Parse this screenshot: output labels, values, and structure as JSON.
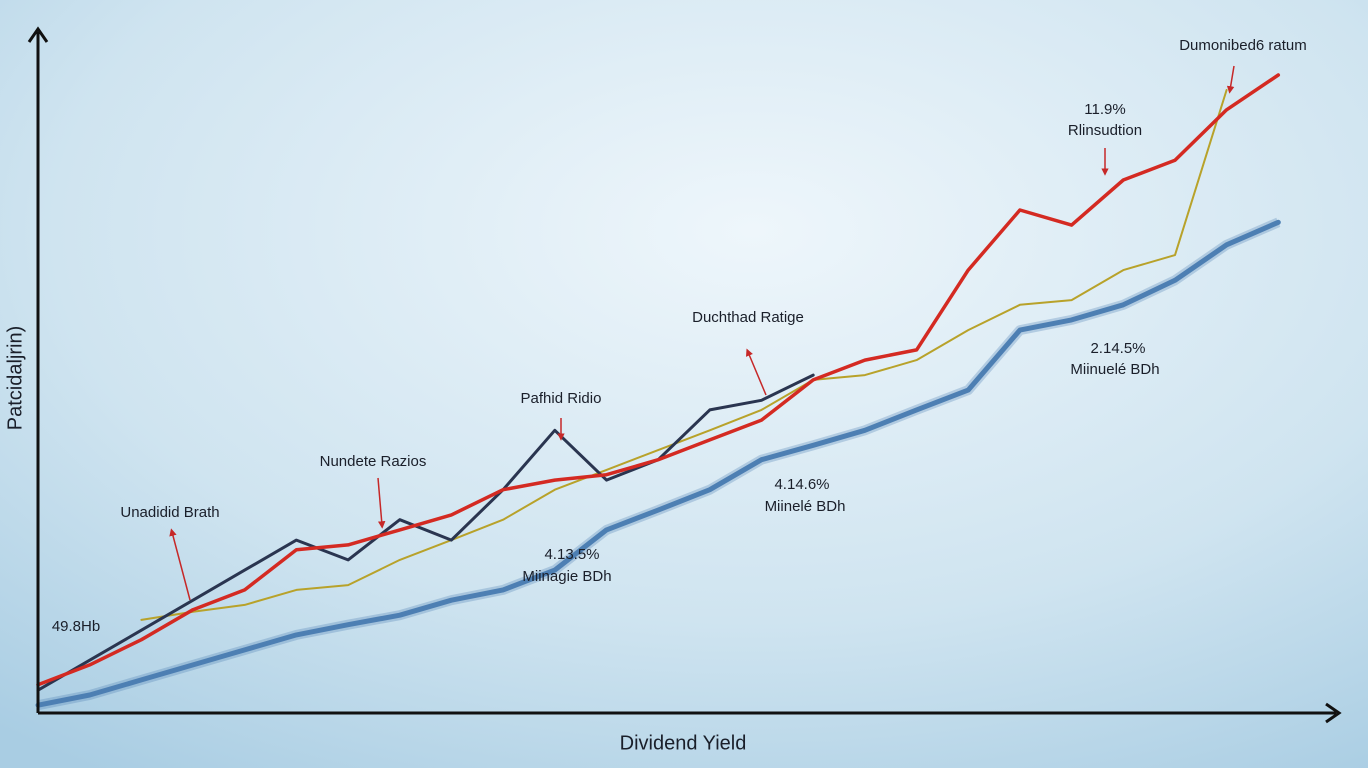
{
  "chart_data": {
    "type": "line",
    "x_label": "Dividend Yield",
    "y_label": "Patcidaljrin)",
    "x": [
      0,
      4,
      8,
      12,
      16,
      20,
      24,
      28,
      32,
      36,
      40,
      44,
      48,
      52,
      56,
      60,
      64,
      68,
      72,
      76,
      80,
      84,
      88,
      92,
      96
    ],
    "xlim": [
      0,
      100
    ],
    "ylim": [
      0,
      100
    ],
    "series": [
      {
        "color": "#4d7fb3",
        "values": [
          1.0,
          2.5,
          4.7,
          6.9,
          9.1,
          11.3,
          12.8,
          14.2,
          16.4,
          17.9,
          20.8,
          26.7,
          29.6,
          32.6,
          37.0,
          39.1,
          41.3,
          44.3,
          47.2,
          56.0,
          57.5,
          59.7,
          63.3,
          68.5,
          71.8
        ]
      },
      {
        "color": "#b8a22a",
        "values": [
          null,
          null,
          13.5,
          14.7,
          15.7,
          17.9,
          18.6,
          22.3,
          25.2,
          28.2,
          32.6,
          35.5,
          38.4,
          41.3,
          44.3,
          48.7,
          49.4,
          51.6,
          56.0,
          59.7,
          60.4,
          64.8,
          67.0,
          91.2,
          null
        ]
      },
      {
        "color": "#2a3550",
        "values": [
          3.2,
          7.6,
          12.0,
          16.4,
          20.8,
          25.2,
          22.3,
          28.2,
          25.2,
          32.6,
          41.3,
          34.0,
          37.0,
          44.3,
          45.7,
          49.4,
          null,
          null,
          null,
          null,
          null,
          null,
          null,
          null,
          null
        ]
      },
      {
        "color": "#d42a22",
        "values": [
          4.0,
          6.9,
          10.6,
          15.0,
          17.9,
          23.8,
          24.5,
          26.7,
          28.9,
          32.6,
          34.0,
          34.8,
          37.0,
          39.9,
          42.8,
          48.7,
          51.6,
          53.1,
          64.8,
          73.6,
          71.4,
          78.0,
          80.9,
          88.3,
          93.4
        ]
      }
    ],
    "annotations": [
      "Dumonibed6 ratum",
      "11.9%",
      "Rlinsudtion",
      "Duchthad Ratige",
      "2.14.5%",
      "Miinuelé BDh",
      "Pafhid Ridio",
      "Nundete Razios",
      "4.14.6%",
      "Miinelé BDh",
      "Unadidid Brath",
      "4.13.5%",
      "Miinagie BDh",
      "49.8Hb"
    ]
  }
}
